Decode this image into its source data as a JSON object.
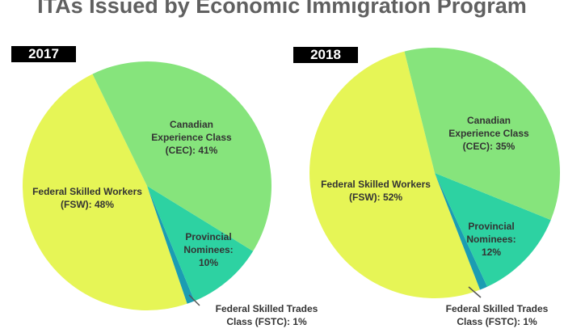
{
  "chart_data": [
    {
      "type": "pie",
      "title": "2017",
      "labels": [
        "Canadian Experience Class (CEC): 41%",
        "Provincial Nominees: 10%",
        "Federal Skilled Trades Class (FSTC): 1%",
        "Federal Skilled Workers (FSW): 48%"
      ],
      "categories": [
        "CEC",
        "PN",
        "FSTC",
        "FSW"
      ],
      "values": [
        41,
        10,
        1,
        48
      ],
      "colors": [
        "#86e47c",
        "#2dd2a2",
        "#1b9db2",
        "#e6f556"
      ]
    },
    {
      "type": "pie",
      "title": "2018",
      "labels": [
        "Canadian Experience Class (CEC): 35%",
        "Provincial Nominees: 12%",
        "Federal Skilled Trades Class (FSTC): 1%",
        "Federal Skilled Workers (FSW): 52%"
      ],
      "categories": [
        "CEC",
        "PN",
        "FSTC",
        "FSW"
      ],
      "values": [
        35,
        12,
        1,
        52
      ],
      "colors": [
        "#86e47c",
        "#2dd2a2",
        "#1b9db2",
        "#e6f556"
      ]
    }
  ],
  "title": "ITAs Issued by Economic Immigration Program",
  "text": {
    "p1": {
      "cec": [
        "Canadian",
        "Experience Class",
        "(CEC): 41%"
      ],
      "fsw": [
        "Federal Skilled Workers",
        "(FSW): 48%"
      ],
      "pn": [
        "Provincial",
        "Nominees:",
        "10%"
      ],
      "fstc": [
        "Federal Skilled Trades",
        "Class (FSTC): 1%"
      ]
    },
    "p2": {
      "cec": [
        "Canadian",
        "Experience Class",
        "(CEC): 35%"
      ],
      "fsw": [
        "Federal Skilled Workers",
        "(FSW): 52%"
      ],
      "pn": [
        "Provincial",
        "Nominees:",
        "12%"
      ],
      "fstc": [
        "Federal Skilled Trades",
        "Class (FSTC): 1%"
      ]
    }
  }
}
